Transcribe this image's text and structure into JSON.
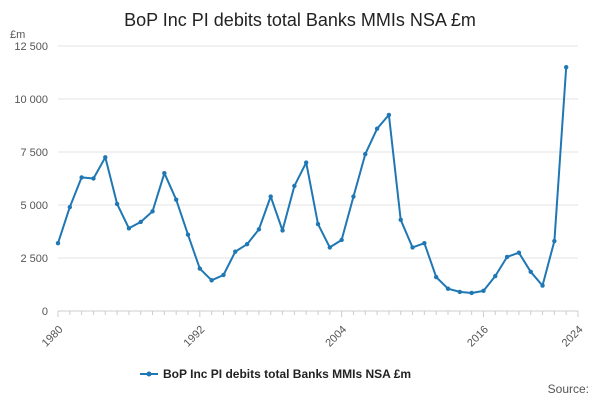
{
  "chart_data": {
    "type": "line",
    "title": "BoP Inc PI debits total Banks MMIs NSA £m",
    "y_unit": "£m",
    "xlim": [
      1980,
      2024
    ],
    "ylim": [
      0,
      12500
    ],
    "x_ticks": [
      1980,
      1992,
      2004,
      2016,
      2024
    ],
    "y_ticks": [
      0,
      2500,
      5000,
      7500,
      10000,
      12500
    ],
    "y_tick_labels": [
      "0",
      "2 500",
      "5 000",
      "7 500",
      "10 000",
      "12 500"
    ],
    "grid": "horizontal",
    "legend_position": "bottom",
    "color": "#1f77b4",
    "series": [
      {
        "name": "BoP Inc PI debits total Banks MMIs NSA £m",
        "x": [
          1980,
          1981,
          1982,
          1983,
          1984,
          1985,
          1986,
          1987,
          1988,
          1989,
          1990,
          1991,
          1992,
          1993,
          1994,
          1995,
          1996,
          1997,
          1998,
          1999,
          2000,
          2001,
          2002,
          2003,
          2004,
          2005,
          2006,
          2007,
          2008,
          2009,
          2010,
          2011,
          2012,
          2013,
          2014,
          2015,
          2016,
          2017,
          2018,
          2019,
          2020,
          2021,
          2022,
          2023
        ],
        "values": [
          3200,
          4900,
          6300,
          6250,
          7250,
          5050,
          3900,
          4200,
          4700,
          6500,
          5250,
          3600,
          2000,
          1450,
          1700,
          2800,
          3150,
          3850,
          5400,
          3800,
          5900,
          7000,
          4100,
          3000,
          3350,
          5400,
          7400,
          8600,
          9250,
          4300,
          3000,
          3200,
          1600,
          1050,
          900,
          850,
          950,
          1650,
          2550,
          2750,
          1850,
          1200,
          3300,
          11500
        ]
      }
    ]
  },
  "legend": {
    "label": "BoP Inc PI debits total Banks MMIs NSA £m"
  },
  "source_label": "Source:"
}
